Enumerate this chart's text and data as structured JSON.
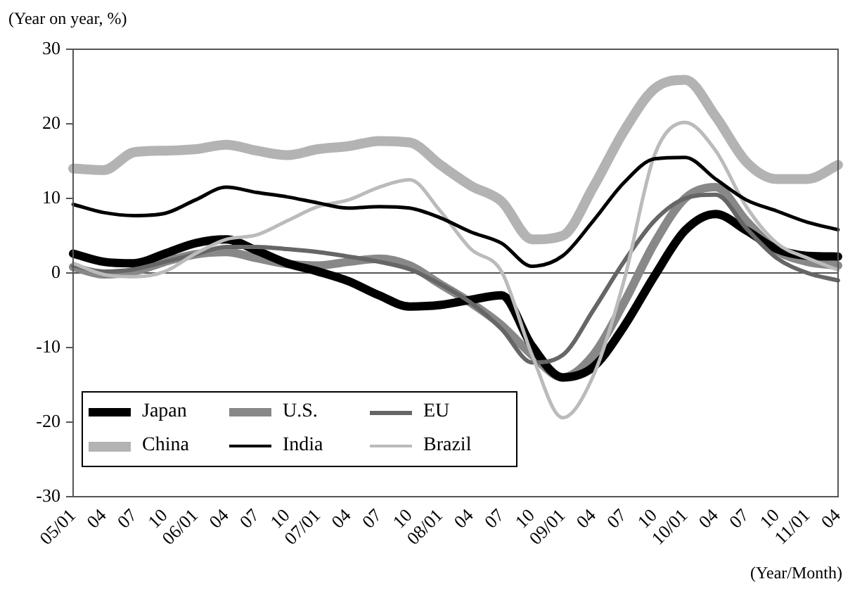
{
  "chart_data": {
    "type": "line",
    "ylabel": "(Year on year, %)",
    "xlabel": "(Year/Month)",
    "categories": [
      "05/01",
      "04",
      "07",
      "10",
      "06/01",
      "04",
      "07",
      "10",
      "07/01",
      "04",
      "07",
      "10",
      "08/01",
      "04",
      "07",
      "10",
      "09/01",
      "04",
      "07",
      "10",
      "10/01",
      "04",
      "07",
      "10",
      "11/01",
      "04"
    ],
    "series": [
      {
        "name": "Japan",
        "color": "#000000",
        "values": [
          2.6,
          1.5,
          1.3,
          2.6,
          4,
          4.5,
          3,
          1.3,
          0.2,
          -1.1,
          -3,
          -4.5,
          -4.3,
          -3.6,
          -3,
          -9.8,
          -14,
          -12.6,
          -7.2,
          -0.4,
          5.7,
          7.9,
          5.7,
          3.2,
          2.3,
          2.2
        ]
      },
      {
        "name": "U.S.",
        "color": "#888888",
        "values": [
          0.8,
          -0.2,
          0.2,
          1.5,
          2.5,
          2.8,
          2,
          1.2,
          1,
          1.5,
          1.9,
          1,
          -1.5,
          -4,
          -7,
          -11,
          -14,
          -11,
          -4,
          4,
          10,
          11.5,
          7,
          3,
          1.5,
          1
        ]
      },
      {
        "name": "EU",
        "color": "#666666",
        "values": [
          1,
          0.2,
          0.5,
          1.5,
          2.5,
          3.5,
          3.5,
          3.2,
          2.8,
          2.2,
          1.5,
          0.5,
          -1.5,
          -4,
          -7.5,
          -12,
          -11,
          -5,
          1.5,
          7,
          10,
          10.5,
          6,
          2,
          0,
          -1
        ]
      },
      {
        "name": "China",
        "color": "#b3b3b3",
        "values": [
          14,
          13.8,
          16.2,
          16.4,
          16.6,
          17.2,
          16.4,
          15.8,
          16.6,
          17,
          17.7,
          17.5,
          14.5,
          11.7,
          9.6,
          4.5,
          5,
          11.5,
          19,
          24.7,
          25.9,
          21,
          14.9,
          12.6,
          12.6,
          14.5
        ]
      },
      {
        "name": "India",
        "color": "#000000",
        "values": [
          9.2,
          8.1,
          7.7,
          8,
          9.8,
          11.5,
          10.8,
          10.2,
          9.4,
          8.7,
          8.9,
          8.7,
          7.4,
          5.5,
          4,
          0.9,
          2.3,
          7,
          12.1,
          15.3,
          15.5,
          12.6,
          9.8,
          8.3,
          6.8,
          5.8
        ]
      },
      {
        "name": "Brazil",
        "color": "#bbbbbb",
        "values": [
          1.3,
          -0.2,
          -0.5,
          0.2,
          2.6,
          4.5,
          5.1,
          7,
          8.9,
          9.8,
          11.5,
          12.5,
          8.3,
          3.2,
          0.2,
          -11,
          -19.4,
          -13.8,
          -1.1,
          15.8,
          20.2,
          16.4,
          8.9,
          4,
          2,
          0.4
        ]
      }
    ],
    "ylim": [
      -30,
      30
    ],
    "yticks": [
      -30,
      -20,
      -10,
      0,
      10,
      20,
      30
    ],
    "ref_lines": [
      {
        "axis": "y",
        "value": 0,
        "color": "#555555"
      }
    ],
    "grid": false,
    "legend": "bottom left",
    "marker": "none",
    "line_style": "solid"
  }
}
